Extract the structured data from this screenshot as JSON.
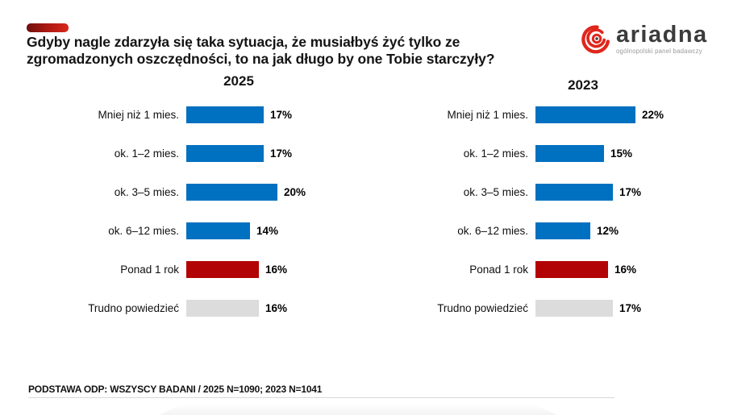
{
  "header": {
    "title_line1": "Gdyby nagle zdarzyła się taka sytuacja, że musiałbyś żyć tylko ze",
    "title_line2": "zgromadzonych oszczędności, to na jak długo by one Tobie starczyły?"
  },
  "logo": {
    "brand": "ariadna",
    "tagline": "ogólnopolski panel badawczy"
  },
  "chart_data": [
    {
      "type": "bar",
      "orientation": "horizontal",
      "title": "2025",
      "categories": [
        "Mniej niż 1 mies.",
        "ok. 1–2 mies.",
        "ok. 3–5 mies.",
        "ok. 6–12 mies.",
        "Ponad 1 rok",
        "Trudno powiedzieć"
      ],
      "values": [
        17,
        17,
        20,
        14,
        16,
        16
      ],
      "value_suffix": "%",
      "bar_colors": [
        "#0070C0",
        "#0070C0",
        "#0070C0",
        "#0070C0",
        "#B20404",
        "#DCDCDC"
      ],
      "xlim": [
        0,
        25
      ],
      "grid": false,
      "legend": false
    },
    {
      "type": "bar",
      "orientation": "horizontal",
      "title": "2023",
      "categories": [
        "Mniej niż 1 mies.",
        "ok. 1–2 mies.",
        "ok. 3–5 mies.",
        "ok. 6–12 mies.",
        "Ponad 1 rok",
        "Trudno powiedzieć"
      ],
      "values": [
        22,
        15,
        17,
        12,
        16,
        17
      ],
      "value_suffix": "%",
      "bar_colors": [
        "#0070C0",
        "#0070C0",
        "#0070C0",
        "#0070C0",
        "#B20404",
        "#DCDCDC"
      ],
      "xlim": [
        0,
        25
      ],
      "grid": false,
      "legend": false
    }
  ],
  "footer": {
    "base_note": "PODSTAWA ODP: WSZYSCY BADANI / 2025 N=1090; 2023 N=1041"
  },
  "colors": {
    "bar_blue": "#0070C0",
    "bar_red": "#B20404",
    "bar_gray": "#DCDCDC",
    "accent_dash_dark": "#6E0F0D",
    "accent_dash_bright": "#D9291B",
    "logo_red": "#E0261C"
  }
}
